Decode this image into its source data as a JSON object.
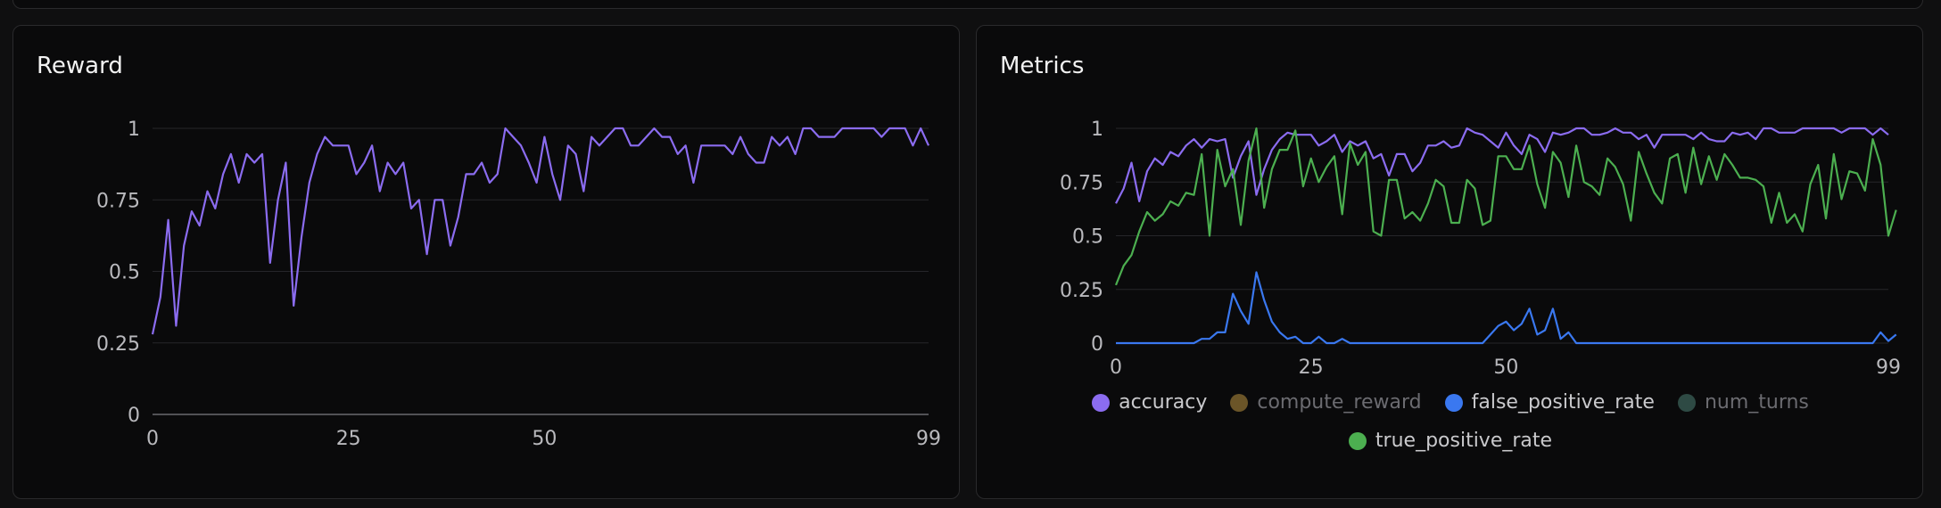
{
  "reward_panel": {
    "title": "Reward"
  },
  "metrics_panel": {
    "title": "Metrics"
  },
  "chart_data": [
    {
      "type": "line",
      "title": "Reward",
      "xlim": [
        0,
        99
      ],
      "ylim": [
        0,
        1
      ],
      "x_ticks": [
        0,
        25,
        50,
        99
      ],
      "y_ticks": [
        0,
        0.25,
        0.5,
        0.75,
        1
      ],
      "y_tick_labels": [
        "0",
        "0.25",
        "0.5",
        "0.75",
        "1"
      ],
      "grid": true,
      "series": [
        {
          "color": "#8b6cf0",
          "values": [
            0.28,
            0.41,
            0.68,
            0.31,
            0.59,
            0.71,
            0.66,
            0.78,
            0.72,
            0.84,
            0.91,
            0.81,
            0.91,
            0.88,
            0.91,
            0.53,
            0.75,
            0.88,
            0.38,
            0.62,
            0.81,
            0.91,
            0.97,
            0.94,
            0.94,
            0.94,
            0.84,
            0.88,
            0.94,
            0.78,
            0.88,
            0.84,
            0.88,
            0.72,
            0.75,
            0.56,
            0.75,
            0.75,
            0.59,
            0.69,
            0.84,
            0.84,
            0.88,
            0.81,
            0.84,
            1.0,
            0.97,
            0.94,
            0.88,
            0.81,
            0.97,
            0.84,
            0.75,
            0.94,
            0.91,
            0.78,
            0.97,
            0.94,
            0.97,
            1.0,
            1.0,
            0.94,
            0.94,
            0.97,
            1.0,
            0.97,
            0.97,
            0.91,
            0.94,
            0.81,
            0.94,
            0.94,
            0.94,
            0.94,
            0.91,
            0.97,
            0.91,
            0.88,
            0.88,
            0.97,
            0.94,
            0.97,
            0.91,
            1.0,
            1.0,
            0.97,
            0.97,
            0.97,
            1.0,
            1.0,
            1.0,
            1.0,
            1.0,
            0.97,
            1.0,
            1.0,
            1.0,
            0.94,
            1.0,
            0.94
          ]
        }
      ]
    },
    {
      "type": "line",
      "title": "Metrics",
      "xlim": [
        0,
        99
      ],
      "ylim": [
        0,
        1
      ],
      "x_ticks": [
        0,
        25,
        50,
        99
      ],
      "y_ticks": [
        0,
        0.25,
        0.5,
        0.75,
        1
      ],
      "y_tick_labels": [
        "0",
        "0.25",
        "0.5",
        "0.75",
        "1"
      ],
      "grid": true,
      "legend_position": "bottom",
      "series": [
        {
          "name": "accuracy",
          "color": "#8b6cf0",
          "visible": true,
          "values": [
            0.65,
            0.72,
            0.84,
            0.66,
            0.8,
            0.86,
            0.83,
            0.89,
            0.87,
            0.92,
            0.95,
            0.91,
            0.95,
            0.94,
            0.95,
            0.77,
            0.87,
            0.94,
            0.69,
            0.81,
            0.9,
            0.95,
            0.98,
            0.97,
            0.97,
            0.97,
            0.92,
            0.94,
            0.97,
            0.89,
            0.94,
            0.92,
            0.94,
            0.86,
            0.88,
            0.78,
            0.88,
            0.88,
            0.8,
            0.84,
            0.92,
            0.92,
            0.94,
            0.91,
            0.92,
            1.0,
            0.98,
            0.97,
            0.94,
            0.91,
            0.98,
            0.92,
            0.88,
            0.97,
            0.95,
            0.89,
            0.98,
            0.97,
            0.98,
            1.0,
            1.0,
            0.97,
            0.97,
            0.98,
            1.0,
            0.98,
            0.98,
            0.95,
            0.97,
            0.91,
            0.97,
            0.97,
            0.97,
            0.97,
            0.95,
            0.98,
            0.95,
            0.94,
            0.94,
            0.98,
            0.97,
            0.98,
            0.95,
            1.0,
            1.0,
            0.98,
            0.98,
            0.98,
            1.0,
            1.0,
            1.0,
            1.0,
            1.0,
            0.98,
            1.0,
            1.0,
            1.0,
            0.97,
            1.0,
            0.97
          ]
        },
        {
          "name": "compute_reward",
          "color": "#6b5528",
          "visible": false,
          "values": []
        },
        {
          "name": "false_positive_rate",
          "color": "#3a78f0",
          "visible": true,
          "values": [
            0,
            0,
            0,
            0,
            0,
            0,
            0,
            0,
            0,
            0,
            0,
            0.02,
            0.02,
            0.05,
            0.05,
            0.23,
            0.15,
            0.09,
            0.33,
            0.2,
            0.1,
            0.05,
            0.02,
            0.03,
            0,
            0,
            0.03,
            0,
            0,
            0.02,
            0,
            0,
            0,
            0,
            0,
            0,
            0,
            0,
            0,
            0,
            0,
            0,
            0,
            0,
            0,
            0,
            0,
            0,
            0.04,
            0.08,
            0.1,
            0.06,
            0.09,
            0.16,
            0.04,
            0.06,
            0.16,
            0.02,
            0.05,
            0,
            0,
            0,
            0,
            0,
            0,
            0,
            0,
            0,
            0,
            0,
            0,
            0,
            0,
            0,
            0,
            0,
            0,
            0,
            0,
            0,
            0,
            0,
            0,
            0,
            0,
            0,
            0,
            0,
            0,
            0,
            0,
            0,
            0,
            0,
            0,
            0,
            0,
            0,
            0.05,
            0.01,
            0.04
          ]
        },
        {
          "name": "num_turns",
          "color": "#2e4a44",
          "visible": false,
          "values": []
        },
        {
          "name": "true_positive_rate",
          "color": "#4caf50",
          "visible": true,
          "values": [
            0.27,
            0.36,
            0.41,
            0.52,
            0.61,
            0.57,
            0.6,
            0.66,
            0.64,
            0.7,
            0.69,
            0.88,
            0.5,
            0.9,
            0.73,
            0.81,
            0.55,
            0.85,
            1.0,
            0.63,
            0.81,
            0.9,
            0.9,
            0.99,
            0.73,
            0.86,
            0.75,
            0.82,
            0.87,
            0.6,
            0.93,
            0.83,
            0.89,
            0.52,
            0.5,
            0.76,
            0.76,
            0.58,
            0.61,
            0.57,
            0.65,
            0.76,
            0.73,
            0.56,
            0.56,
            0.76,
            0.72,
            0.55,
            0.57,
            0.87,
            0.87,
            0.81,
            0.81,
            0.92,
            0.74,
            0.63,
            0.89,
            0.84,
            0.68,
            0.92,
            0.75,
            0.73,
            0.69,
            0.86,
            0.82,
            0.74,
            0.57,
            0.89,
            0.79,
            0.7,
            0.65,
            0.86,
            0.88,
            0.7,
            0.91,
            0.74,
            0.87,
            0.76,
            0.88,
            0.83,
            0.77,
            0.77,
            0.76,
            0.73,
            0.56,
            0.7,
            0.56,
            0.6,
            0.52,
            0.74,
            0.83,
            0.58,
            0.88,
            0.67,
            0.8,
            0.79,
            0.71,
            0.95,
            0.83,
            0.5,
            0.62
          ]
        }
      ]
    }
  ]
}
